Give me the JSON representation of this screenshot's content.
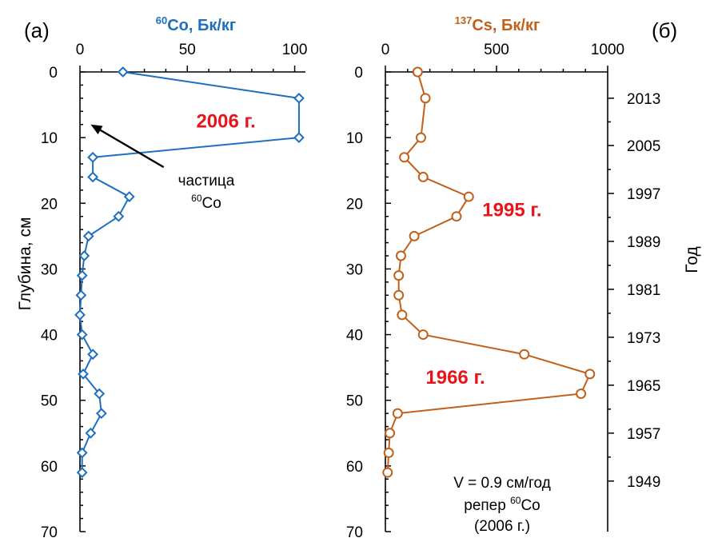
{
  "colors": {
    "co_series": "#1f6fbf",
    "cs_series": "#c0601a",
    "year_highlight": "#e8141c",
    "axis": "#000000"
  },
  "chart_data": [
    {
      "type": "line",
      "panel_label": "(а)",
      "title": {
        "isotope_mass": "60",
        "text": "Co, Бк/кг"
      },
      "orientation": "depth-down",
      "x_range": [
        0,
        105
      ],
      "x_ticks": [
        0,
        50,
        100
      ],
      "y_range": [
        0,
        70
      ],
      "y_ticks": [
        0,
        10,
        20,
        30,
        40,
        50,
        60,
        70
      ],
      "ylabel": "Глубина, см",
      "marker": "diamond",
      "series": [
        {
          "name": "60Co",
          "points": [
            {
              "x": 20,
              "y": 0
            },
            {
              "x": 102,
              "y": 4
            },
            {
              "x": 102,
              "y": 10
            },
            {
              "x": 6,
              "y": 13
            },
            {
              "x": 6,
              "y": 16
            },
            {
              "x": 23,
              "y": 19
            },
            {
              "x": 18,
              "y": 22
            },
            {
              "x": 4,
              "y": 25
            },
            {
              "x": 2,
              "y": 28
            },
            {
              "x": 1,
              "y": 31
            },
            {
              "x": 0.5,
              "y": 34
            },
            {
              "x": 0,
              "y": 37
            },
            {
              "x": 1,
              "y": 40
            },
            {
              "x": 6,
              "y": 43
            },
            {
              "x": 1.5,
              "y": 46
            },
            {
              "x": 9,
              "y": 49
            },
            {
              "x": 10,
              "y": 52
            },
            {
              "x": 5,
              "y": 55
            },
            {
              "x": 1,
              "y": 58
            },
            {
              "x": 1,
              "y": 61
            }
          ]
        }
      ],
      "annotations": [
        {
          "text": "2006 г.",
          "x": 68,
          "y": 7.5,
          "role": "year-marker"
        },
        {
          "text_line1": "частица",
          "text_line2_mass": "60",
          "text_line2": "Co",
          "arrow_from": {
            "x": 39,
            "y": 14.5
          },
          "arrow_to": {
            "x": 5,
            "y": 8
          }
        }
      ]
    },
    {
      "type": "line",
      "panel_label": "(б)",
      "title": {
        "isotope_mass": "137",
        "text": "Cs, Бк/кг"
      },
      "orientation": "depth-down",
      "x_range": [
        0,
        1000
      ],
      "x_ticks": [
        0,
        500,
        1000
      ],
      "y_range": [
        0,
        70
      ],
      "y_ticks": [
        0,
        10,
        20,
        30,
        40,
        50,
        60,
        70
      ],
      "y2label": "Год",
      "y2_ticks": [
        {
          "label": "2013",
          "depth": 4
        },
        {
          "label": "2005",
          "depth": 11.2
        },
        {
          "label": "1997",
          "depth": 18.5
        },
        {
          "label": "1989",
          "depth": 25.8
        },
        {
          "label": "1981",
          "depth": 33.1
        },
        {
          "label": "1973",
          "depth": 40.4
        },
        {
          "label": "1965",
          "depth": 47.7
        },
        {
          "label": "1957",
          "depth": 55
        },
        {
          "label": "1949",
          "depth": 62.3
        }
      ],
      "marker": "circle",
      "series": [
        {
          "name": "137Cs",
          "points": [
            {
              "x": 145,
              "y": 0
            },
            {
              "x": 180,
              "y": 4
            },
            {
              "x": 160,
              "y": 10
            },
            {
              "x": 85,
              "y": 13
            },
            {
              "x": 170,
              "y": 16
            },
            {
              "x": 375,
              "y": 19
            },
            {
              "x": 320,
              "y": 22
            },
            {
              "x": 130,
              "y": 25
            },
            {
              "x": 70,
              "y": 28
            },
            {
              "x": 60,
              "y": 31
            },
            {
              "x": 60,
              "y": 34
            },
            {
              "x": 75,
              "y": 37
            },
            {
              "x": 170,
              "y": 40
            },
            {
              "x": 625,
              "y": 43
            },
            {
              "x": 920,
              "y": 46
            },
            {
              "x": 880,
              "y": 49
            },
            {
              "x": 55,
              "y": 52
            },
            {
              "x": 20,
              "y": 55
            },
            {
              "x": 15,
              "y": 58
            },
            {
              "x": 10,
              "y": 61
            }
          ]
        }
      ],
      "annotations": [
        {
          "text": "1995 г.",
          "x": 570,
          "y": 21,
          "role": "year-marker"
        },
        {
          "text": "1966 г.",
          "x": 315,
          "y": 46.5,
          "role": "year-marker"
        }
      ],
      "note": {
        "line1": "V = 0.9 см/год",
        "line2_prefix": "репер ",
        "line2_mass": "60",
        "line2_suffix": "Co",
        "line3": "(2006 г.)"
      }
    }
  ]
}
